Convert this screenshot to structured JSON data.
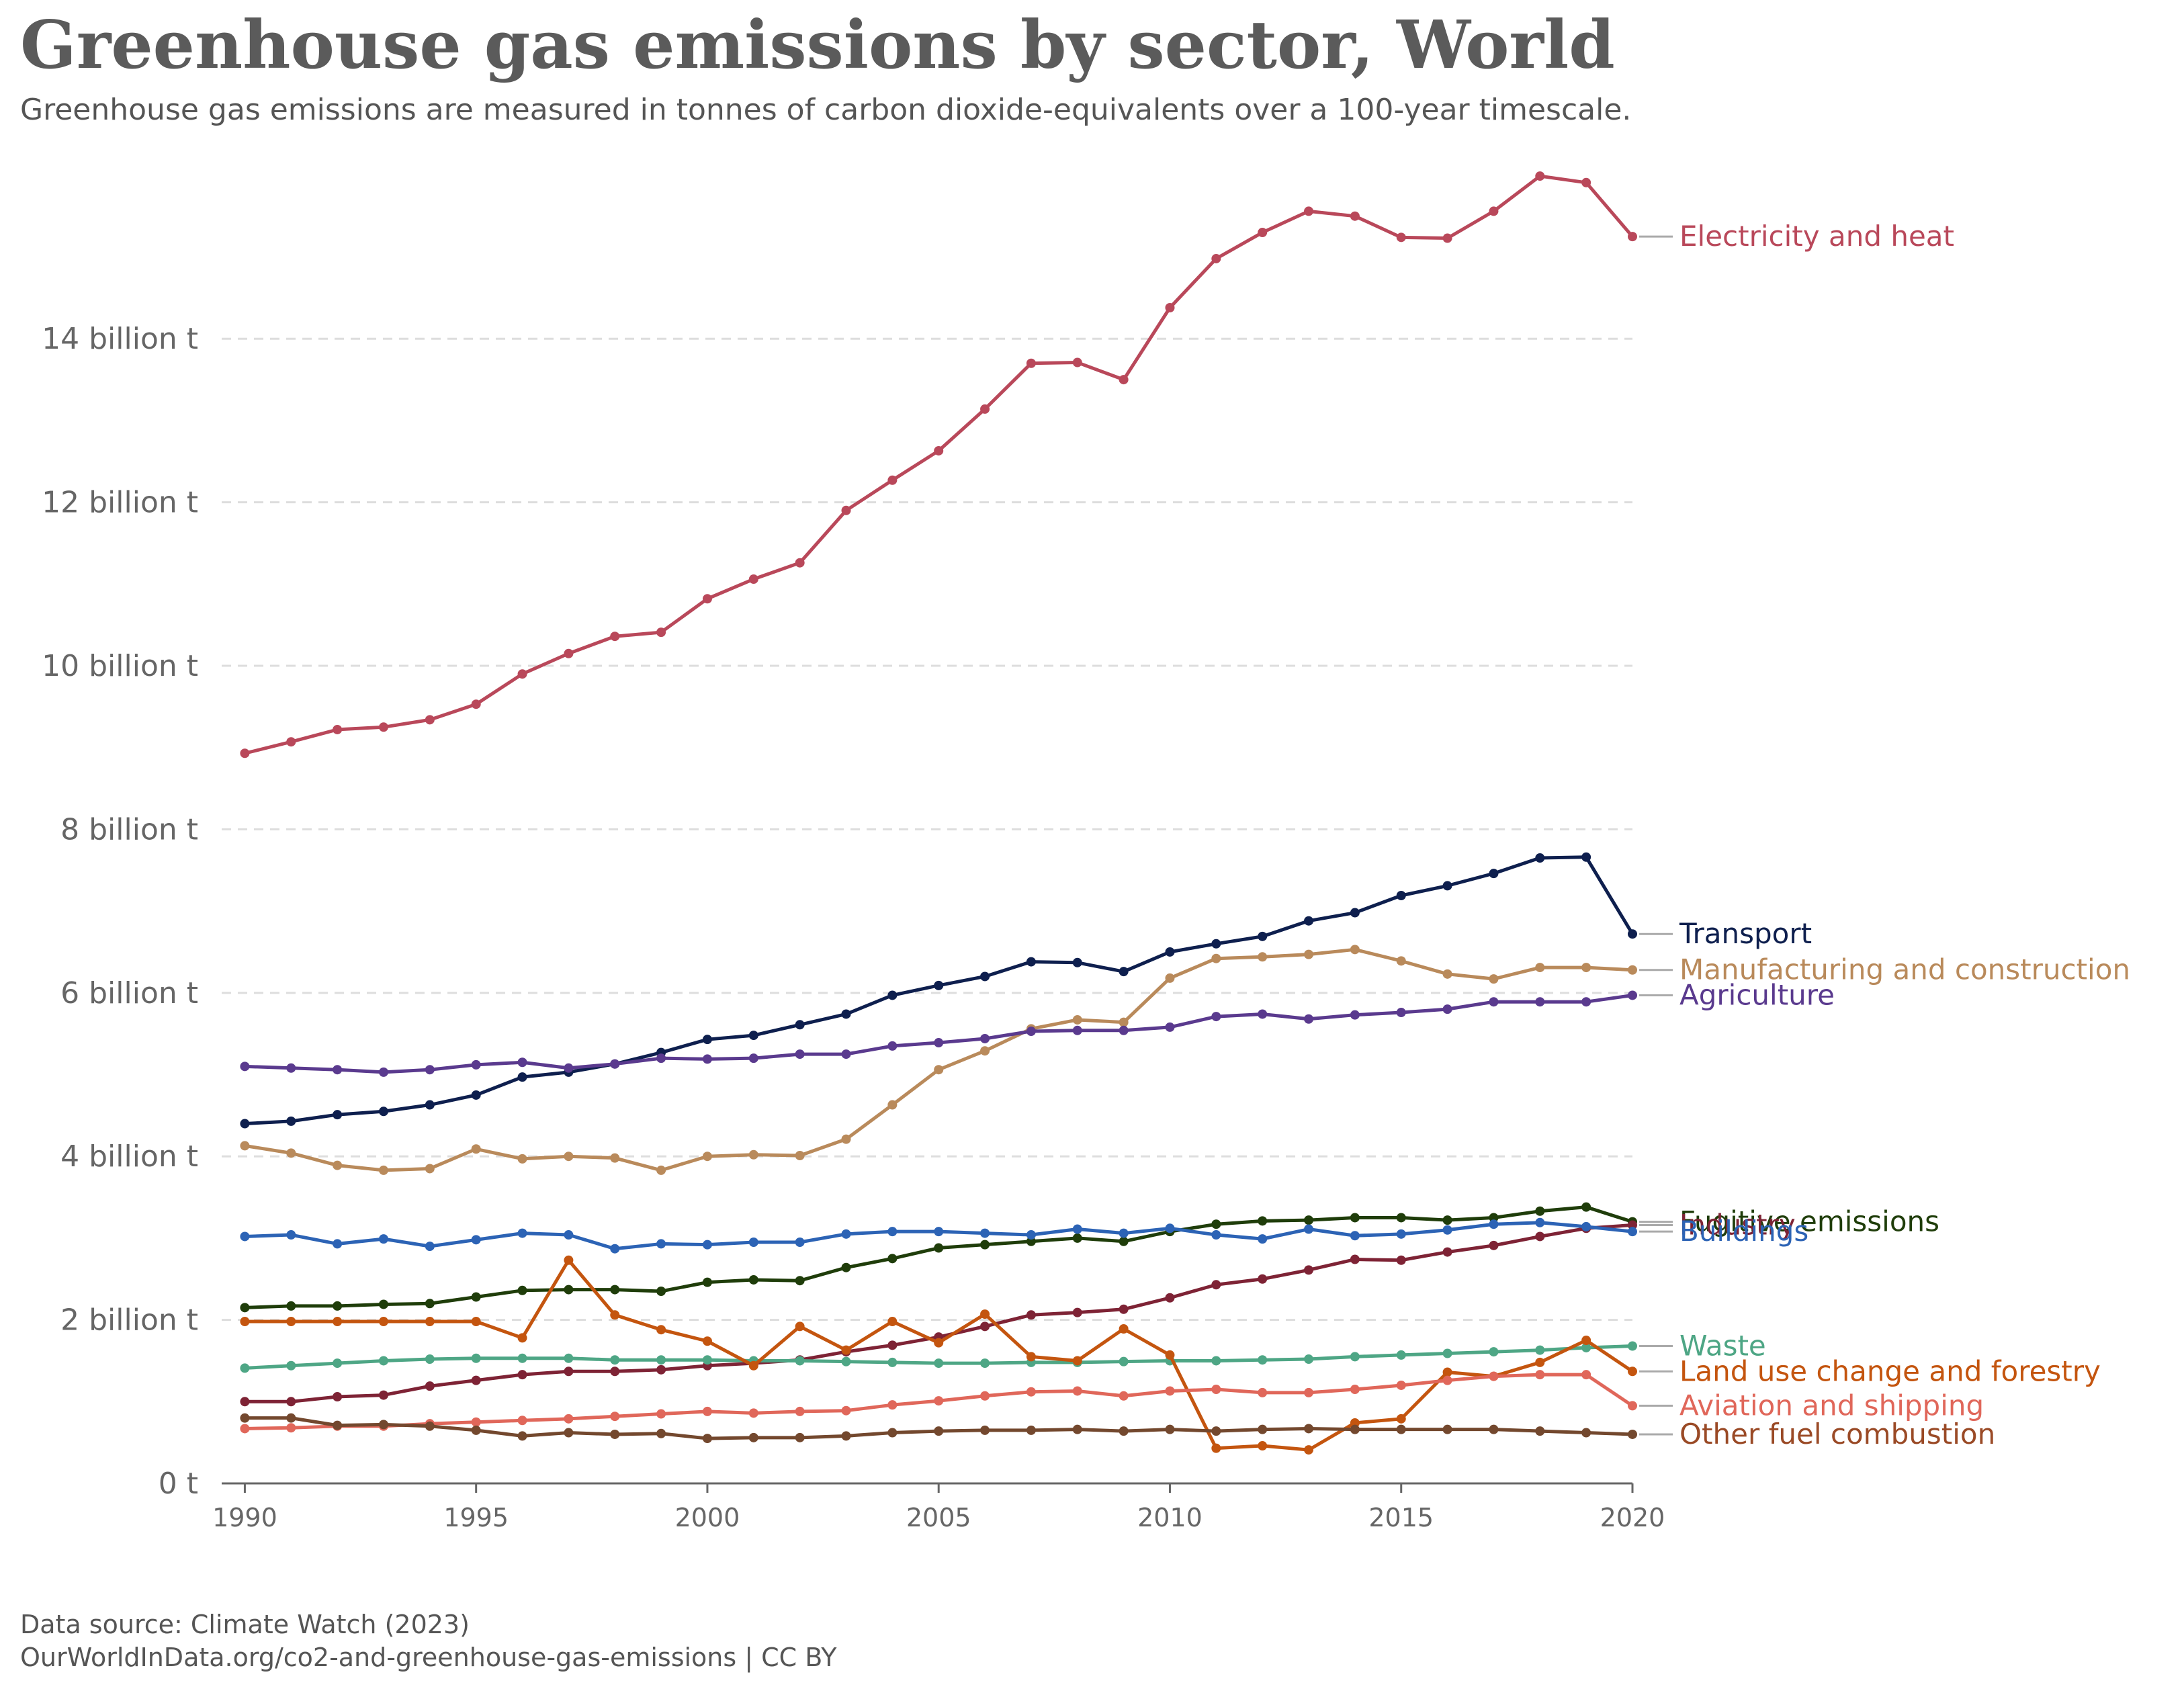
{
  "title": "Greenhouse gas emissions by sector, World",
  "subtitle": "Greenhouse gas emissions are measured in tonnes of carbon dioxide-equivalents over a 100-year timescale.",
  "footer": {
    "source": "Data source: Climate Watch (2023)",
    "credit": "OurWorldInData.org/co2-and-greenhouse-gas-emissions | CC BY"
  },
  "chart_data": {
    "type": "line",
    "x": [
      1990,
      1991,
      1992,
      1993,
      1994,
      1995,
      1996,
      1997,
      1998,
      1999,
      2000,
      2001,
      2002,
      2003,
      2004,
      2005,
      2006,
      2007,
      2008,
      2009,
      2010,
      2011,
      2012,
      2013,
      2014,
      2015,
      2016,
      2017,
      2018,
      2019,
      2020
    ],
    "xlim": [
      1989.5,
      2020
    ],
    "ylim": [
      0,
      16.5
    ],
    "y_unit": "billion t",
    "x_ticks": [
      1990,
      1995,
      2000,
      2005,
      2010,
      2015,
      2020
    ],
    "y_ticks": [
      {
        "value": 0,
        "label": "0 t"
      },
      {
        "value": 2,
        "label": "2 billion t"
      },
      {
        "value": 4,
        "label": "4 billion t"
      },
      {
        "value": 6,
        "label": "6 billion t"
      },
      {
        "value": 8,
        "label": "8 billion t"
      },
      {
        "value": 10,
        "label": "10 billion t"
      },
      {
        "value": 12,
        "label": "12 billion t"
      },
      {
        "value": 14,
        "label": "14 billion t"
      }
    ],
    "grid": "horizontal dashed",
    "legend": "line-end labels",
    "series": [
      {
        "name": "Electricity and heat",
        "color": "#b9485a",
        "values": [
          8.93,
          9.07,
          9.22,
          9.25,
          9.34,
          9.53,
          9.9,
          10.15,
          10.36,
          10.41,
          10.82,
          11.06,
          11.26,
          11.9,
          12.27,
          12.63,
          13.14,
          13.7,
          13.71,
          13.5,
          14.38,
          14.98,
          15.3,
          15.56,
          15.5,
          15.24,
          15.23,
          15.56,
          15.99,
          15.91,
          15.25
        ]
      },
      {
        "name": "Transport",
        "color": "#0e1f4e",
        "values": [
          4.4,
          4.43,
          4.51,
          4.55,
          4.63,
          4.75,
          4.97,
          5.03,
          5.13,
          5.27,
          5.43,
          5.48,
          5.61,
          5.74,
          5.97,
          6.09,
          6.2,
          6.38,
          6.37,
          6.26,
          6.5,
          6.6,
          6.69,
          6.88,
          6.98,
          7.19,
          7.31,
          7.46,
          7.65,
          7.66,
          6.72
        ]
      },
      {
        "name": "Manufacturing and construction",
        "color": "#b98a5b",
        "values": [
          4.13,
          4.04,
          3.89,
          3.83,
          3.85,
          4.09,
          3.97,
          4.0,
          3.98,
          3.83,
          4.0,
          4.02,
          4.01,
          4.21,
          4.63,
          5.06,
          5.29,
          5.56,
          5.67,
          5.64,
          6.18,
          6.42,
          6.44,
          6.47,
          6.53,
          6.39,
          6.23,
          6.17,
          6.31,
          6.31,
          6.28
        ]
      },
      {
        "name": "Agriculture",
        "color": "#5a3a8e",
        "values": [
          5.1,
          5.08,
          5.06,
          5.03,
          5.06,
          5.12,
          5.15,
          5.08,
          5.13,
          5.2,
          5.19,
          5.2,
          5.25,
          5.25,
          5.35,
          5.39,
          5.44,
          5.53,
          5.54,
          5.54,
          5.58,
          5.71,
          5.74,
          5.68,
          5.73,
          5.76,
          5.8,
          5.89,
          5.89,
          5.89,
          5.97
        ]
      },
      {
        "name": "Fugitive emissions",
        "color": "#1f3d0a",
        "values": [
          2.15,
          2.17,
          2.17,
          2.19,
          2.2,
          2.28,
          2.36,
          2.37,
          2.37,
          2.35,
          2.46,
          2.49,
          2.48,
          2.64,
          2.75,
          2.88,
          2.92,
          2.96,
          3.0,
          2.96,
          3.08,
          3.17,
          3.21,
          3.22,
          3.25,
          3.25,
          3.22,
          3.25,
          3.33,
          3.38,
          3.2
        ]
      },
      {
        "name": "Industry",
        "color": "#7e2335",
        "values": [
          1.0,
          1.0,
          1.06,
          1.08,
          1.19,
          1.26,
          1.33,
          1.37,
          1.37,
          1.39,
          1.44,
          1.47,
          1.51,
          1.61,
          1.69,
          1.79,
          1.92,
          2.06,
          2.09,
          2.13,
          2.27,
          2.43,
          2.5,
          2.61,
          2.74,
          2.73,
          2.83,
          2.91,
          3.02,
          3.12,
          3.16
        ]
      },
      {
        "name": "Buildings",
        "color": "#2c63b5",
        "values": [
          3.02,
          3.04,
          2.93,
          2.99,
          2.9,
          2.98,
          3.06,
          3.04,
          2.87,
          2.93,
          2.92,
          2.95,
          2.95,
          3.05,
          3.08,
          3.08,
          3.06,
          3.04,
          3.11,
          3.06,
          3.12,
          3.04,
          2.99,
          3.11,
          3.03,
          3.05,
          3.1,
          3.17,
          3.19,
          3.14,
          3.08
        ]
      },
      {
        "name": "Waste",
        "color": "#4ea685",
        "values": [
          1.41,
          1.44,
          1.47,
          1.5,
          1.52,
          1.53,
          1.53,
          1.53,
          1.51,
          1.51,
          1.51,
          1.5,
          1.5,
          1.49,
          1.48,
          1.47,
          1.47,
          1.48,
          1.48,
          1.49,
          1.5,
          1.5,
          1.51,
          1.52,
          1.55,
          1.57,
          1.59,
          1.61,
          1.63,
          1.66,
          1.68
        ]
      },
      {
        "name": "Land use change and forestry",
        "color": "#c4550f",
        "values": [
          1.98,
          1.98,
          1.98,
          1.98,
          1.98,
          1.98,
          1.78,
          2.73,
          2.06,
          1.88,
          1.74,
          1.44,
          1.92,
          1.63,
          1.98,
          1.72,
          2.07,
          1.55,
          1.5,
          1.89,
          1.57,
          0.43,
          0.46,
          0.41,
          0.74,
          0.79,
          1.36,
          1.31,
          1.48,
          1.75,
          1.37
        ]
      },
      {
        "name": "Aviation and shipping",
        "color": "#e0675a",
        "values": [
          0.67,
          0.68,
          0.7,
          0.7,
          0.73,
          0.75,
          0.77,
          0.79,
          0.82,
          0.85,
          0.88,
          0.86,
          0.88,
          0.89,
          0.96,
          1.01,
          1.07,
          1.12,
          1.13,
          1.07,
          1.13,
          1.15,
          1.11,
          1.11,
          1.15,
          1.2,
          1.26,
          1.31,
          1.33,
          1.33,
          0.95
        ]
      },
      {
        "name": "Other fuel combustion",
        "color": "#73482e",
        "values": [
          0.8,
          0.8,
          0.71,
          0.72,
          0.7,
          0.65,
          0.58,
          0.62,
          0.6,
          0.61,
          0.55,
          0.56,
          0.56,
          0.58,
          0.62,
          0.64,
          0.65,
          0.65,
          0.66,
          0.64,
          0.66,
          0.64,
          0.66,
          0.67,
          0.66,
          0.66,
          0.66,
          0.66,
          0.64,
          0.62,
          0.6
        ]
      }
    ],
    "end_labels": [
      {
        "series": "Electricity and heat",
        "label": "Electricity and heat",
        "color": "#b9485a",
        "label_value": 15.25
      },
      {
        "series": "Transport",
        "label": "Transport",
        "color": "#0e1f4e",
        "label_value": 6.72
      },
      {
        "series": "Manufacturing and construction",
        "label": "Manufacturing and construction",
        "color": "#b98a5b",
        "label_value": 6.28
      },
      {
        "series": "Agriculture",
        "label": "Agriculture",
        "color": "#5a3a8e",
        "label_value": 5.97
      },
      {
        "series": "Fugitive emissions",
        "label": "Fugitive emissions",
        "color": "#1f3d0a",
        "label_value": 3.2
      },
      {
        "series": "Industry",
        "label": "Industry",
        "color": "#7e2335",
        "label_value": 3.16
      },
      {
        "series": "Buildings",
        "label": "Buildings",
        "color": "#2c63b5",
        "label_value": 3.08
      },
      {
        "series": "Waste",
        "label": "Waste",
        "color": "#4ea685",
        "label_value": 1.68
      },
      {
        "series": "Land use change and forestry",
        "label": "Land use change and forestry",
        "color": "#c4550f",
        "label_value": 1.37
      },
      {
        "series": "Aviation and shipping",
        "label": "Aviation and shipping",
        "color": "#e0675a",
        "label_value": 0.95
      },
      {
        "series": "Other fuel combustion",
        "label": "Other fuel combustion",
        "color": "#9a4a26",
        "label_value": 0.6
      }
    ],
    "colors": {
      "grid": "#dddddd",
      "axis": "#666666",
      "connector": "#aaaaaa"
    }
  }
}
